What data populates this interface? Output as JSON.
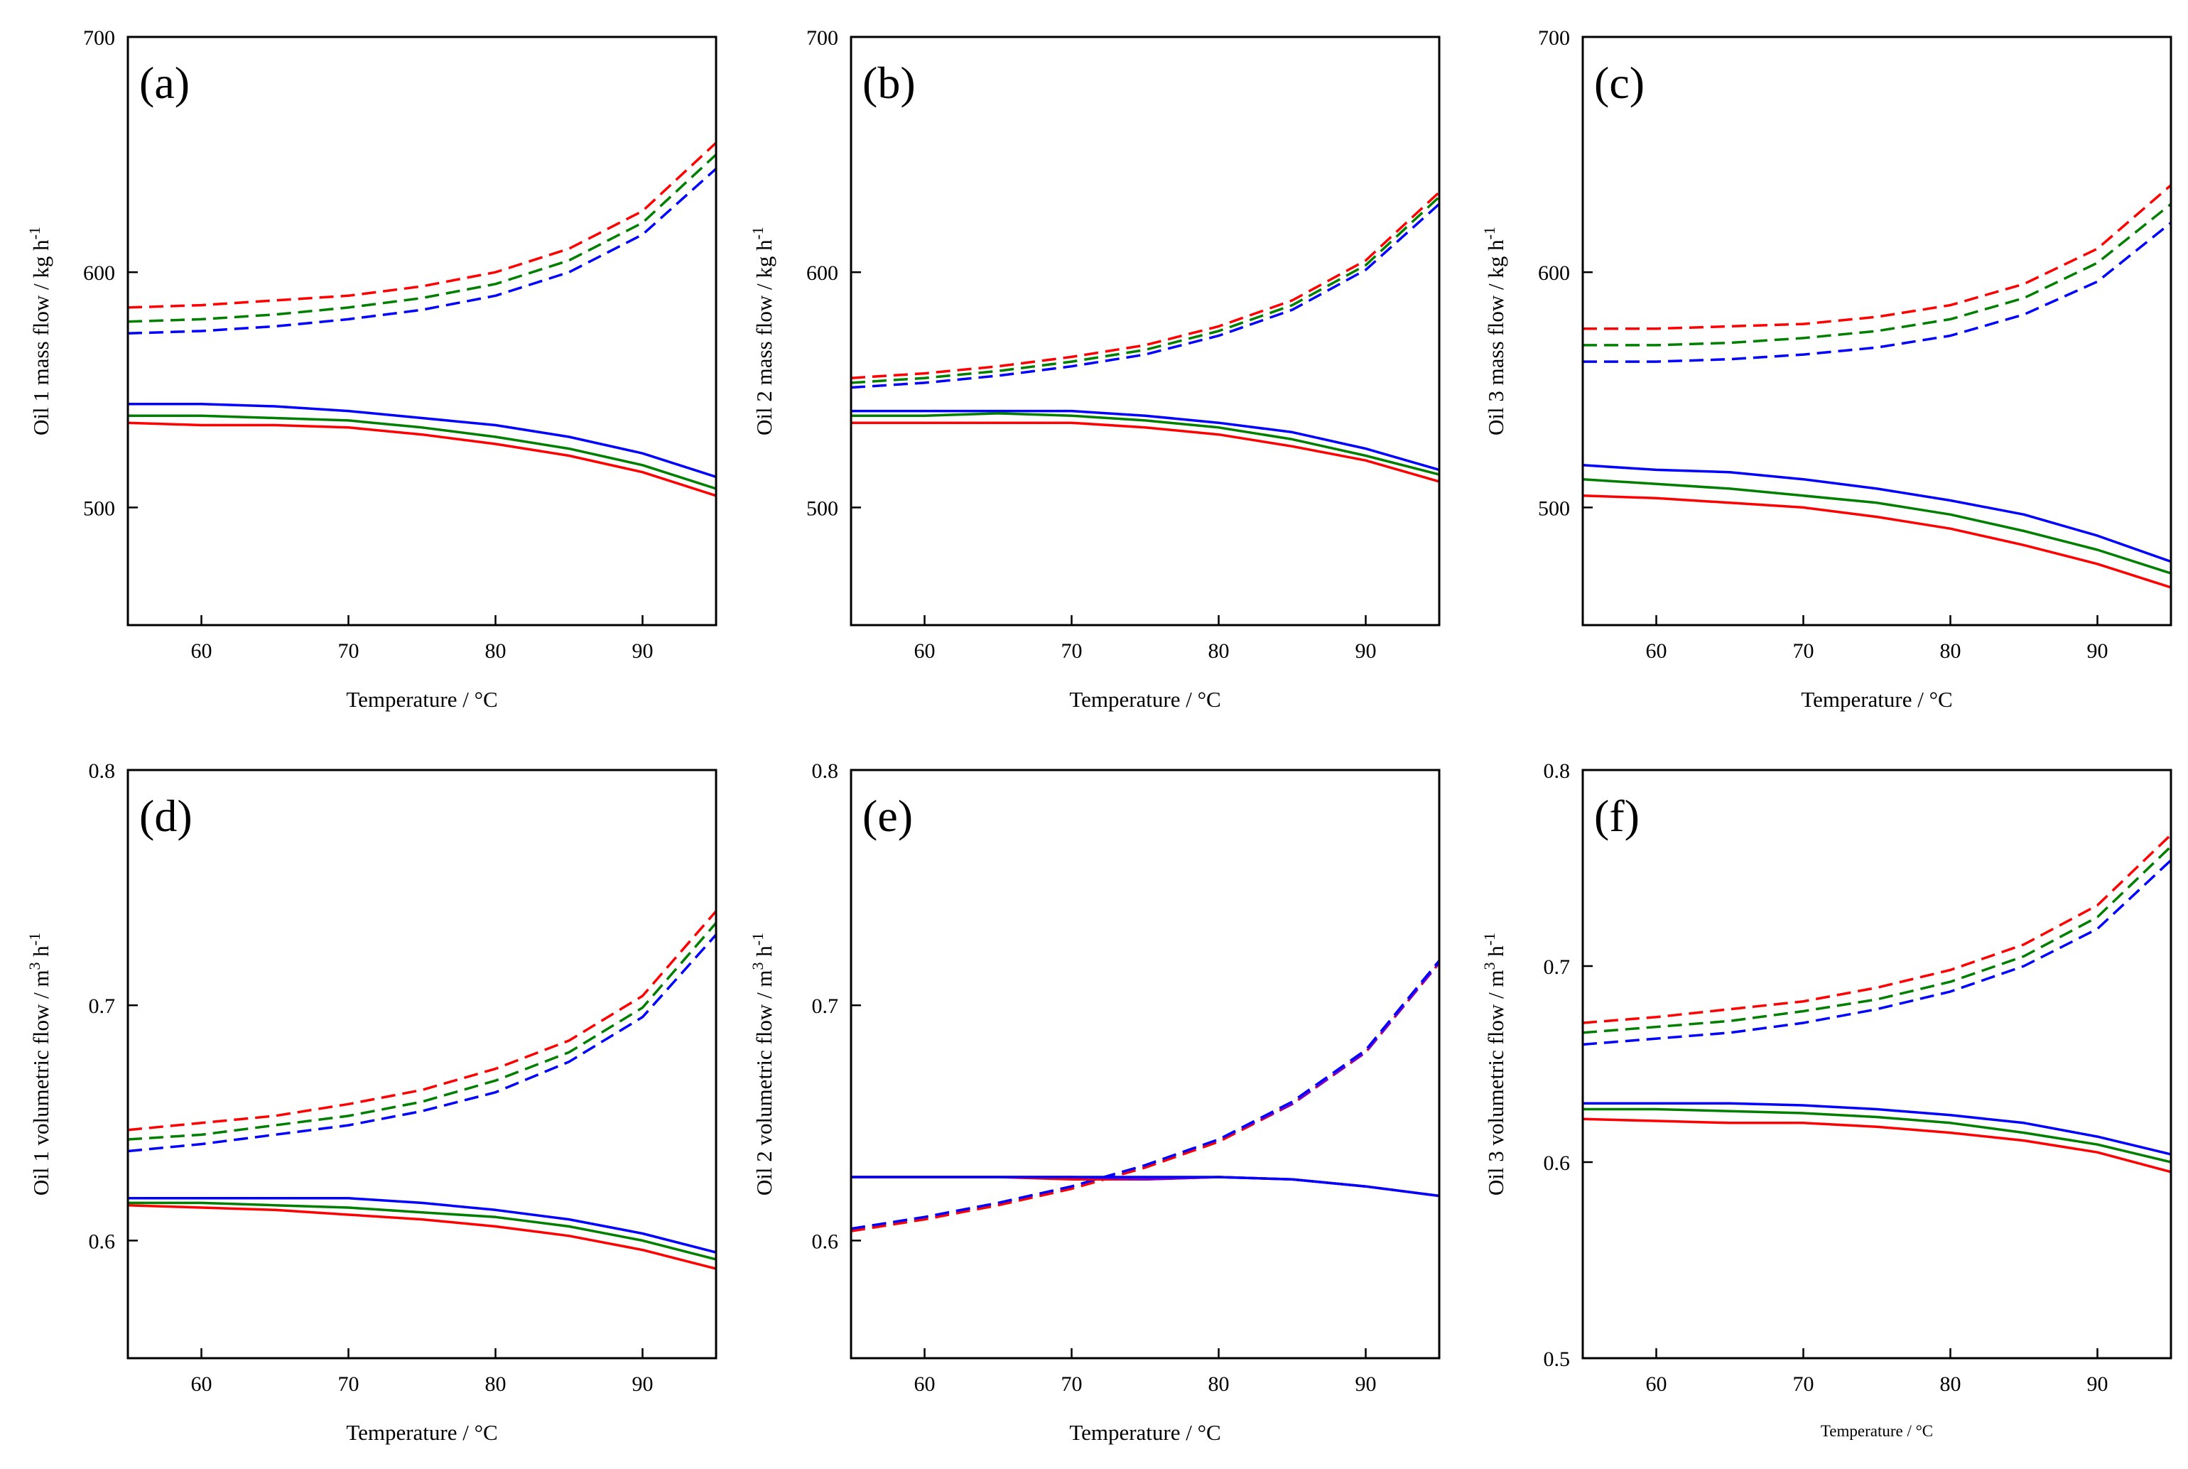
{
  "colors": {
    "red": "#ff0000",
    "green": "#007f00",
    "blue": "#0000ff",
    "purple": "#7f00bf"
  },
  "chart_data": [
    {
      "type": "line",
      "panel": "(a)",
      "xlabel": "Temperature / °C",
      "ylabel": "Oil 1 mass flow / kg h",
      "ylabel_sup": "-1",
      "xlim": [
        55,
        95
      ],
      "ylim": [
        450,
        700
      ],
      "xticks": [
        60,
        70,
        80,
        90
      ],
      "xtick_labels": [
        "60",
        "70",
        "80",
        "90"
      ],
      "yticks": [
        500,
        600,
        700
      ],
      "ytick_labels": [
        "500",
        "600",
        "700"
      ],
      "x": [
        55,
        60,
        65,
        70,
        75,
        80,
        85,
        90,
        95
      ],
      "series": [
        {
          "name": "red-dashed",
          "color": "red",
          "style": "dashed",
          "values": [
            585,
            586,
            588,
            590,
            594,
            600,
            610,
            626,
            655
          ]
        },
        {
          "name": "green-dashed",
          "color": "green",
          "style": "dashed",
          "values": [
            579,
            580,
            582,
            585,
            589,
            595,
            605,
            621,
            650
          ]
        },
        {
          "name": "blue-dashed",
          "color": "blue",
          "style": "dashed",
          "values": [
            574,
            575,
            577,
            580,
            584,
            590,
            600,
            616,
            644
          ]
        },
        {
          "name": "blue-solid",
          "color": "blue",
          "style": "solid",
          "values": [
            544,
            544,
            543,
            541,
            538,
            535,
            530,
            523,
            513
          ]
        },
        {
          "name": "green-solid",
          "color": "green",
          "style": "solid",
          "values": [
            539,
            539,
            538,
            537,
            534,
            530,
            525,
            518,
            508
          ]
        },
        {
          "name": "red-solid",
          "color": "red",
          "style": "solid",
          "values": [
            536,
            535,
            535,
            534,
            531,
            527,
            522,
            515,
            505
          ]
        }
      ]
    },
    {
      "type": "line",
      "panel": "(b)",
      "xlabel": "Temperature / °C",
      "ylabel": "Oil 2 mass flow / kg h",
      "ylabel_sup": "-1",
      "xlim": [
        55,
        95
      ],
      "ylim": [
        450,
        700
      ],
      "xticks": [
        60,
        70,
        80,
        90
      ],
      "xtick_labels": [
        "60",
        "70",
        "80",
        "90"
      ],
      "yticks": [
        500,
        600,
        700
      ],
      "ytick_labels": [
        "500",
        "600",
        "700"
      ],
      "x": [
        55,
        60,
        65,
        70,
        75,
        80,
        85,
        90,
        95
      ],
      "series": [
        {
          "name": "red-dashed",
          "color": "red",
          "style": "dashed",
          "values": [
            555,
            557,
            560,
            564,
            569,
            577,
            588,
            605,
            634
          ]
        },
        {
          "name": "green-dashed",
          "color": "green",
          "style": "dashed",
          "values": [
            553,
            555,
            558,
            562,
            567,
            575,
            586,
            603,
            632
          ]
        },
        {
          "name": "blue-dashed",
          "color": "blue",
          "style": "dashed",
          "values": [
            551,
            553,
            556,
            560,
            565,
            573,
            584,
            601,
            629
          ]
        },
        {
          "name": "blue-solid",
          "color": "blue",
          "style": "solid",
          "values": [
            541,
            541,
            541,
            541,
            539,
            536,
            532,
            525,
            516
          ]
        },
        {
          "name": "green-solid",
          "color": "green",
          "style": "solid",
          "values": [
            539,
            539,
            540,
            539,
            537,
            534,
            529,
            522,
            514
          ]
        },
        {
          "name": "red-solid",
          "color": "red",
          "style": "solid",
          "values": [
            536,
            536,
            536,
            536,
            534,
            531,
            526,
            520,
            511
          ]
        }
      ]
    },
    {
      "type": "line",
      "panel": "(c)",
      "xlabel": "Temperature / °C",
      "ylabel": "Oil 3 mass flow / kg h",
      "ylabel_sup": "-1",
      "xlim": [
        55,
        95
      ],
      "ylim": [
        450,
        700
      ],
      "xticks": [
        60,
        70,
        80,
        90
      ],
      "xtick_labels": [
        "60",
        "70",
        "80",
        "90"
      ],
      "yticks": [
        500,
        600,
        700
      ],
      "ytick_labels": [
        "500",
        "600",
        "700"
      ],
      "x": [
        55,
        60,
        65,
        70,
        75,
        80,
        85,
        90,
        95
      ],
      "series": [
        {
          "name": "red-dashed",
          "color": "red",
          "style": "dashed",
          "values": [
            576,
            576,
            577,
            578,
            581,
            586,
            595,
            610,
            637
          ]
        },
        {
          "name": "green-dashed",
          "color": "green",
          "style": "dashed",
          "values": [
            569,
            569,
            570,
            572,
            575,
            580,
            589,
            604,
            629
          ]
        },
        {
          "name": "blue-dashed",
          "color": "blue",
          "style": "dashed",
          "values": [
            562,
            562,
            563,
            565,
            568,
            573,
            582,
            596,
            621
          ]
        },
        {
          "name": "blue-solid",
          "color": "blue",
          "style": "solid",
          "values": [
            518,
            516,
            515,
            512,
            508,
            503,
            497,
            488,
            477
          ]
        },
        {
          "name": "green-solid",
          "color": "green",
          "style": "solid",
          "values": [
            512,
            510,
            508,
            505,
            502,
            497,
            490,
            482,
            472
          ]
        },
        {
          "name": "red-solid",
          "color": "red",
          "style": "solid",
          "values": [
            505,
            504,
            502,
            500,
            496,
            491,
            484,
            476,
            466
          ]
        }
      ]
    },
    {
      "type": "line",
      "panel": "(d)",
      "xlabel": "Temperature / °C",
      "ylabel": "Oil 1 volumetric flow / m",
      "ylabel_mid": "3",
      "ylabel_mid2": " h",
      "ylabel_sup": "-1",
      "xlim": [
        55,
        95
      ],
      "ylim": [
        0.55,
        0.8
      ],
      "xticks": [
        60,
        70,
        80,
        90
      ],
      "xtick_labels": [
        "60",
        "70",
        "80",
        "90"
      ],
      "yticks": [
        0.6,
        0.7,
        0.8
      ],
      "ytick_labels": [
        "0.6",
        "0.7",
        "0.8"
      ],
      "x": [
        55,
        60,
        65,
        70,
        75,
        80,
        85,
        90,
        95
      ],
      "series": [
        {
          "name": "red-dashed",
          "color": "red",
          "style": "dashed",
          "values": [
            0.647,
            0.65,
            0.653,
            0.658,
            0.664,
            0.673,
            0.685,
            0.704,
            0.74
          ]
        },
        {
          "name": "green-dashed",
          "color": "green",
          "style": "dashed",
          "values": [
            0.643,
            0.645,
            0.649,
            0.653,
            0.659,
            0.668,
            0.68,
            0.699,
            0.735
          ]
        },
        {
          "name": "blue-dashed",
          "color": "blue",
          "style": "dashed",
          "values": [
            0.638,
            0.641,
            0.645,
            0.649,
            0.655,
            0.663,
            0.676,
            0.695,
            0.73
          ]
        },
        {
          "name": "blue-solid",
          "color": "blue",
          "style": "solid",
          "values": [
            0.618,
            0.618,
            0.618,
            0.618,
            0.616,
            0.613,
            0.609,
            0.603,
            0.595
          ]
        },
        {
          "name": "green-solid",
          "color": "green",
          "style": "solid",
          "values": [
            0.616,
            0.616,
            0.615,
            0.614,
            0.612,
            0.61,
            0.606,
            0.6,
            0.592
          ]
        },
        {
          "name": "red-solid",
          "color": "red",
          "style": "solid",
          "values": [
            0.615,
            0.614,
            0.613,
            0.611,
            0.609,
            0.606,
            0.602,
            0.596,
            0.588
          ]
        }
      ]
    },
    {
      "type": "line",
      "panel": "(e)",
      "xlabel": "Temperature / °C",
      "ylabel": "Oil 2 volumetric flow / m",
      "ylabel_mid": "3",
      "ylabel_mid2": " h",
      "ylabel_sup": "-1",
      "xlim": [
        55,
        95
      ],
      "ylim": [
        0.55,
        0.8
      ],
      "xticks": [
        60,
        70,
        80,
        90
      ],
      "xtick_labels": [
        "60",
        "70",
        "80",
        "90"
      ],
      "yticks": [
        0.6,
        0.7,
        0.8
      ],
      "ytick_labels": [
        "0.6",
        "0.7",
        "0.8"
      ],
      "x": [
        55,
        60,
        65,
        70,
        75,
        80,
        85,
        90,
        95
      ],
      "series": [
        {
          "name": "red-dashed",
          "color": "red",
          "style": "dashed",
          "values": [
            0.604,
            0.609,
            0.615,
            0.622,
            0.631,
            0.642,
            0.658,
            0.68,
            0.718
          ]
        },
        {
          "name": "purple-dashed",
          "color": "purple",
          "style": "dashed",
          "values": [
            0.605,
            0.61,
            0.616,
            0.623,
            0.632,
            0.643,
            0.658,
            0.68,
            0.718
          ]
        },
        {
          "name": "blue-dashed",
          "color": "blue",
          "style": "dashed",
          "values": [
            0.605,
            0.61,
            0.616,
            0.623,
            0.632,
            0.643,
            0.659,
            0.681,
            0.719
          ]
        },
        {
          "name": "red-solid",
          "color": "red",
          "style": "solid",
          "values": [
            0.627,
            0.627,
            0.627,
            0.626,
            0.626,
            0.627,
            0.626,
            0.623,
            0.619
          ]
        },
        {
          "name": "purple-solid",
          "color": "purple",
          "style": "solid",
          "values": [
            0.627,
            0.627,
            0.627,
            0.627,
            0.626,
            0.627,
            0.626,
            0.623,
            0.619
          ]
        },
        {
          "name": "blue-solid",
          "color": "blue",
          "style": "solid",
          "values": [
            0.627,
            0.627,
            0.627,
            0.627,
            0.627,
            0.627,
            0.626,
            0.623,
            0.619
          ]
        }
      ]
    },
    {
      "type": "line",
      "panel": "(f)",
      "xlabel": "Temperature / °C",
      "xlabel_small": true,
      "ylabel": "Oil 3 volumetric flow / m",
      "ylabel_mid": "3",
      "ylabel_mid2": " h",
      "ylabel_sup": "-1",
      "xlim": [
        55,
        95
      ],
      "ylim": [
        0.5,
        0.8
      ],
      "xticks": [
        60,
        70,
        80,
        90
      ],
      "xtick_labels": [
        "60",
        "70",
        "80",
        "90"
      ],
      "yticks": [
        0.5,
        0.6,
        0.7,
        0.8
      ],
      "ytick_labels": [
        "0.5",
        "0.6",
        "0.7",
        "0.8"
      ],
      "x": [
        55,
        60,
        65,
        70,
        75,
        80,
        85,
        90,
        95
      ],
      "series": [
        {
          "name": "red-dashed",
          "color": "red",
          "style": "dashed",
          "values": [
            0.671,
            0.674,
            0.678,
            0.682,
            0.689,
            0.698,
            0.711,
            0.731,
            0.767
          ]
        },
        {
          "name": "green-dashed",
          "color": "green",
          "style": "dashed",
          "values": [
            0.666,
            0.669,
            0.672,
            0.677,
            0.683,
            0.692,
            0.705,
            0.725,
            0.761
          ]
        },
        {
          "name": "blue-dashed",
          "color": "blue",
          "style": "dashed",
          "values": [
            0.66,
            0.663,
            0.666,
            0.671,
            0.678,
            0.687,
            0.7,
            0.719,
            0.754
          ]
        },
        {
          "name": "blue-solid",
          "color": "blue",
          "style": "solid",
          "values": [
            0.63,
            0.63,
            0.63,
            0.629,
            0.627,
            0.624,
            0.62,
            0.613,
            0.604
          ]
        },
        {
          "name": "green-solid",
          "color": "green",
          "style": "solid",
          "values": [
            0.627,
            0.627,
            0.626,
            0.625,
            0.623,
            0.62,
            0.615,
            0.609,
            0.6
          ]
        },
        {
          "name": "red-solid",
          "color": "red",
          "style": "solid",
          "values": [
            0.622,
            0.621,
            0.62,
            0.62,
            0.618,
            0.615,
            0.611,
            0.605,
            0.595
          ]
        }
      ]
    }
  ]
}
